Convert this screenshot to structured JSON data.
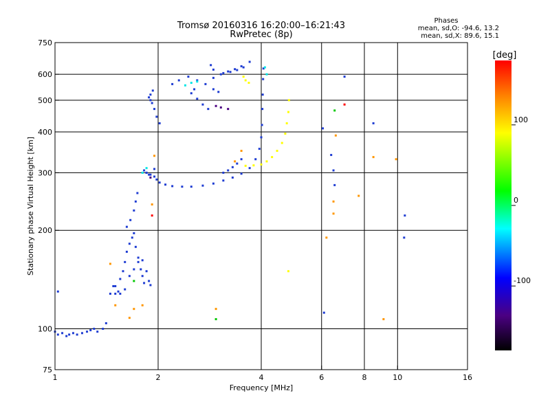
{
  "chart_data": {
    "type": "scatter",
    "title": "Tromsø 20160316 16:20:00–16:21:43",
    "subtitle": "RwPretec (8p)",
    "xlabel": "Frequency [MHz]",
    "ylabel": "Stationary phase Virtual Height [km]",
    "x_scale": "log",
    "y_scale": "log",
    "xlim": [
      1,
      16
    ],
    "ylim": [
      75,
      750
    ],
    "x_ticks": [
      1,
      2,
      4,
      6,
      8,
      10,
      16
    ],
    "y_ticks": [
      75,
      100,
      200,
      300,
      400,
      500,
      600,
      750
    ],
    "x_grid": [
      2,
      4,
      6,
      8,
      10
    ],
    "y_grid": [
      100,
      200,
      300,
      400,
      500,
      600
    ],
    "phases": {
      "title": "Phases",
      "o_line": "mean, sd,O: -94.6, 13.2",
      "x_line": "mean, sd,X:  89.6, 15.1"
    },
    "colorbar": {
      "label": "[deg]",
      "range": [
        -180,
        180
      ],
      "ticks": [
        100,
        0,
        -100
      ],
      "colors": [
        "#ff0000",
        "#ff8000",
        "#ffff00",
        "#00ff00",
        "#00ffff",
        "#0000ff",
        "#4b0082",
        "#000000"
      ]
    },
    "series": [
      {
        "color": "#1e3cd2",
        "points": [
          [
            1.0,
            98
          ],
          [
            1.02,
            96
          ],
          [
            1.05,
            97
          ],
          [
            1.08,
            95
          ],
          [
            1.1,
            96
          ],
          [
            1.13,
            97
          ],
          [
            1.16,
            96
          ],
          [
            1.2,
            97
          ],
          [
            1.24,
            98
          ],
          [
            1.27,
            99
          ],
          [
            1.3,
            100
          ],
          [
            1.33,
            98
          ],
          [
            1.38,
            100
          ],
          [
            1.41,
            104
          ],
          [
            1.45,
            128
          ],
          [
            1.48,
            135
          ],
          [
            1.5,
            128
          ],
          [
            1.53,
            130
          ],
          [
            1.55,
            142
          ],
          [
            1.58,
            150
          ],
          [
            1.6,
            160
          ],
          [
            1.62,
            172
          ],
          [
            1.65,
            182
          ],
          [
            1.68,
            190
          ],
          [
            1.7,
            196
          ],
          [
            1.72,
            178
          ],
          [
            1.75,
            160
          ],
          [
            1.78,
            152
          ],
          [
            1.8,
            145
          ],
          [
            1.82,
            138
          ],
          [
            1.5,
            135
          ],
          [
            1.55,
            128
          ],
          [
            1.6,
            132
          ],
          [
            1.65,
            145
          ],
          [
            1.7,
            152
          ],
          [
            1.75,
            165
          ],
          [
            1.8,
            162
          ],
          [
            1.85,
            150
          ],
          [
            1.88,
            140
          ],
          [
            1.9,
            136
          ],
          [
            1.62,
            205
          ],
          [
            1.66,
            215
          ],
          [
            1.7,
            230
          ],
          [
            1.72,
            245
          ],
          [
            1.74,
            260
          ],
          [
            1.82,
            305
          ],
          [
            1.85,
            300
          ],
          [
            1.9,
            296
          ],
          [
            1.95,
            292
          ],
          [
            1.98,
            286
          ],
          [
            2.02,
            280
          ],
          [
            2.1,
            276
          ],
          [
            2.2,
            273
          ],
          [
            2.35,
            272
          ],
          [
            2.5,
            272
          ],
          [
            2.7,
            274
          ],
          [
            2.9,
            278
          ],
          [
            3.1,
            284
          ],
          [
            3.3,
            290
          ],
          [
            3.5,
            298
          ],
          [
            3.7,
            310
          ],
          [
            3.85,
            330
          ],
          [
            3.95,
            355
          ],
          [
            4.0,
            385
          ],
          [
            4.02,
            420
          ],
          [
            4.03,
            470
          ],
          [
            4.04,
            520
          ],
          [
            4.05,
            580
          ],
          [
            4.06,
            625
          ],
          [
            1.95,
            308
          ],
          [
            1.88,
            296
          ],
          [
            1.85,
            300
          ],
          [
            1.88,
            510
          ],
          [
            1.9,
            500
          ],
          [
            1.92,
            490
          ],
          [
            1.95,
            470
          ],
          [
            1.98,
            445
          ],
          [
            2.02,
            425
          ],
          [
            1.93,
            535
          ],
          [
            1.9,
            520
          ],
          [
            2.2,
            560
          ],
          [
            2.3,
            575
          ],
          [
            2.45,
            590
          ],
          [
            2.6,
            575
          ],
          [
            2.75,
            560
          ],
          [
            2.9,
            540
          ],
          [
            3.0,
            530
          ],
          [
            2.55,
            540
          ],
          [
            2.5,
            525
          ],
          [
            2.6,
            505
          ],
          [
            2.7,
            485
          ],
          [
            2.8,
            470
          ],
          [
            2.9,
            585
          ],
          [
            3.05,
            600
          ],
          [
            3.2,
            612
          ],
          [
            3.35,
            622
          ],
          [
            3.5,
            635
          ],
          [
            3.7,
            655
          ],
          [
            3.55,
            630
          ],
          [
            3.4,
            618
          ],
          [
            3.25,
            610
          ],
          [
            3.1,
            605
          ],
          [
            2.85,
            640
          ],
          [
            2.9,
            620
          ],
          [
            3.5,
            330
          ],
          [
            3.4,
            320
          ],
          [
            3.3,
            312
          ],
          [
            3.2,
            305
          ],
          [
            3.1,
            300
          ],
          [
            6.05,
            410
          ],
          [
            6.4,
            340
          ],
          [
            6.5,
            305
          ],
          [
            6.55,
            275
          ],
          [
            6.1,
            112
          ],
          [
            8.5,
            425
          ],
          [
            7.0,
            590
          ],
          [
            10.5,
            222
          ],
          [
            10.45,
            190
          ],
          [
            1.02,
            130
          ]
        ]
      },
      {
        "color": "#ffff00",
        "points": [
          [
            3.6,
            315
          ],
          [
            3.8,
            316
          ],
          [
            4.0,
            318
          ],
          [
            4.15,
            325
          ],
          [
            4.3,
            335
          ],
          [
            4.45,
            350
          ],
          [
            4.6,
            370
          ],
          [
            4.7,
            395
          ],
          [
            4.75,
            425
          ],
          [
            4.8,
            460
          ],
          [
            4.82,
            500
          ],
          [
            3.55,
            590
          ],
          [
            3.6,
            575
          ],
          [
            3.68,
            565
          ],
          [
            4.8,
            150
          ]
        ]
      },
      {
        "color": "#00e6e6",
        "points": [
          [
            2.4,
            555
          ],
          [
            2.5,
            565
          ],
          [
            2.6,
            570
          ],
          [
            1.8,
            300
          ],
          [
            1.85,
            310
          ],
          [
            4.1,
            630
          ],
          [
            4.15,
            600
          ]
        ]
      },
      {
        "color": "#00c800",
        "points": [
          [
            2.95,
            107
          ],
          [
            6.55,
            465
          ],
          [
            1.7,
            140
          ]
        ]
      },
      {
        "color": "#ff9600",
        "points": [
          [
            1.45,
            158
          ],
          [
            1.5,
            118
          ],
          [
            1.65,
            108
          ],
          [
            1.7,
            115
          ],
          [
            1.8,
            118
          ],
          [
            1.92,
            240
          ],
          [
            1.95,
            338
          ],
          [
            3.5,
            350
          ],
          [
            3.35,
            325
          ],
          [
            2.95,
            115
          ],
          [
            6.2,
            190
          ],
          [
            6.5,
            245
          ],
          [
            6.5,
            225
          ],
          [
            6.6,
            390
          ],
          [
            7.7,
            255
          ],
          [
            8.5,
            335
          ],
          [
            9.9,
            330
          ],
          [
            9.1,
            107
          ]
        ]
      },
      {
        "color": "#ff0000",
        "points": [
          [
            7.0,
            485
          ],
          [
            1.92,
            222
          ]
        ]
      },
      {
        "color": "#4b0082",
        "points": [
          [
            3.2,
            470
          ],
          [
            3.05,
            475
          ],
          [
            2.95,
            480
          ],
          [
            1.9,
            290
          ]
        ]
      }
    ]
  }
}
